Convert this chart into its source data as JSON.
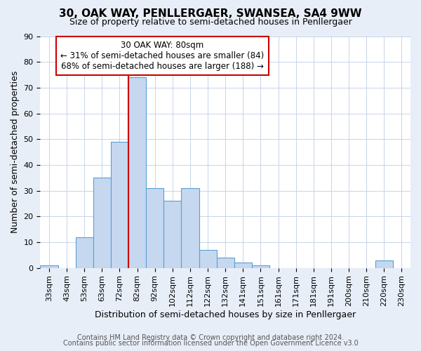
{
  "title": "30, OAK WAY, PENLLERGAER, SWANSEA, SA4 9WW",
  "subtitle": "Size of property relative to semi-detached houses in Penllergaer",
  "xlabel": "Distribution of semi-detached houses by size in Penllergaer",
  "ylabel": "Number of semi-detached properties",
  "categories": [
    "33sqm",
    "43sqm",
    "53sqm",
    "63sqm",
    "72sqm",
    "82sqm",
    "92sqm",
    "102sqm",
    "112sqm",
    "122sqm",
    "132sqm",
    "141sqm",
    "151sqm",
    "161sqm",
    "171sqm",
    "181sqm",
    "191sqm",
    "200sqm",
    "210sqm",
    "220sqm",
    "230sqm"
  ],
  "values": [
    1,
    0,
    12,
    35,
    49,
    74,
    31,
    26,
    31,
    7,
    4,
    2,
    1,
    0,
    0,
    0,
    0,
    0,
    0,
    3,
    0
  ],
  "highlight_index": 5,
  "bar_color": "#c5d8f0",
  "bar_edge_color": "#5a9fd4",
  "vline_color": "#cc0000",
  "annotation_line1": "30 OAK WAY: 80sqm",
  "annotation_line2": "← 31% of semi-detached houses are smaller (84)",
  "annotation_line3": "68% of semi-detached houses are larger (188) →",
  "annotation_box_facecolor": "#ffffff",
  "annotation_box_edgecolor": "#cc0000",
  "ylim": [
    0,
    90
  ],
  "yticks": [
    0,
    10,
    20,
    30,
    40,
    50,
    60,
    70,
    80,
    90
  ],
  "fig_bg_color": "#e8eef8",
  "plot_bg_color": "#ffffff",
  "grid_color": "#c8d4e8",
  "title_fontsize": 11,
  "subtitle_fontsize": 9,
  "axis_label_fontsize": 9,
  "tick_fontsize": 8,
  "annotation_fontsize": 8.5,
  "footer_fontsize": 7,
  "footer_line1": "Contains HM Land Registry data © Crown copyright and database right 2024.",
  "footer_line2": "Contains public sector information licensed under the Open Government Licence v3.0"
}
